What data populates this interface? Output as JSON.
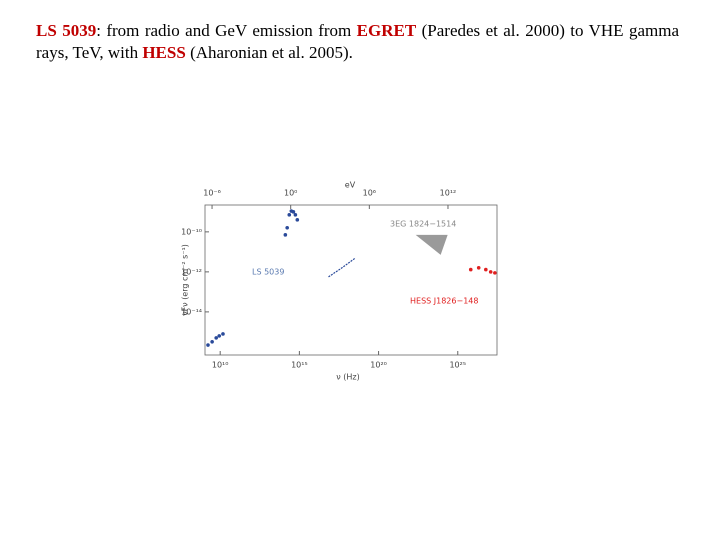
{
  "heading": {
    "parts": [
      "LS 5039",
      ": from radio and GeV emission from ",
      "EGRET",
      " (Paredes et al. 2000) to VHE gamma rays, TeV, with ",
      "HESS",
      " (Aharonian et al. 2005)."
    ]
  },
  "chart_data": {
    "type": "scatter",
    "x_label": "ν (Hz)",
    "y_label": "νFν (erg cm⁻² s⁻¹)",
    "x2_label": "eV",
    "xlog": true,
    "ylog": true,
    "xlim": [
      1100000000.0,
      3e+27
    ],
    "ylim": [
      7e-17,
      2.2e-09
    ],
    "x2lim": [
      2.9e-07,
      5500000000000000.0
    ],
    "xticks": [
      {
        "value": 10000000000.0,
        "label": "10¹⁰"
      },
      {
        "value": 1000000000000000.0,
        "label": "10¹⁵"
      },
      {
        "value": 1e+20,
        "label": "10²⁰"
      },
      {
        "value": 1e+25,
        "label": "10²⁵"
      }
    ],
    "x2ticks": [
      {
        "value": 1e-06,
        "label": "10⁻⁶"
      },
      {
        "value": 1,
        "label": "10⁰"
      },
      {
        "value": 1000000.0,
        "label": "10⁶"
      },
      {
        "value": 1000000000000.0,
        "label": "10¹²"
      }
    ],
    "yticks": [
      {
        "value": 1e-10,
        "label": "10⁻¹⁰"
      },
      {
        "value": 1e-12,
        "label": "10⁻¹²"
      },
      {
        "value": 1e-14,
        "label": "10⁻¹⁴"
      }
    ],
    "annotations": [
      "LS 5039",
      "3EG 1824−1514",
      "HESS J1826−148"
    ],
    "series": [
      {
        "mode": "points",
        "color": "#2a4a9a",
        "x": [
          1700000000.0,
          3100000000.0,
          5600000000.0,
          8700000000.0,
          15000000000.0
        ],
        "values": [
          2.2e-16,
          3.2e-16,
          5e-16,
          6.3e-16,
          7.9e-16
        ]
      },
      {
        "mode": "points",
        "color": "#2a4a9a",
        "x": [
          130000000000000.0,
          170000000000000.0,
          230000000000000.0,
          310000000000000.0,
          420000000000000.0,
          560000000000000.0,
          740000000000000.0
        ],
        "values": [
          7.1e-11,
          1.6e-10,
          7.1e-10,
          1.1e-09,
          1e-09,
          7.1e-10,
          4e-10
        ]
      },
      {
        "mode": "line",
        "color": "#2a4a9a",
        "x": [
          6.9e+16,
          4.9e+17,
          3.5e+18
        ],
        "values": [
          5.6e-13,
          1.6e-12,
          5e-12
        ]
      },
      {
        "mode": "area",
        "color": "#9a9a9a",
        "x": [
          2.2e+22,
          2.3e+24,
          8.3e+23
        ],
        "values": [
          7.1e-11,
          7.1e-11,
          7.1e-12
        ]
      },
      {
        "mode": "points",
        "color": "#e02020",
        "x": [
          6.6e+25,
          2.1e+26,
          5.9e+26,
          1.2e+27,
          2.2e+27
        ],
        "values": [
          1.3e-12,
          1.6e-12,
          1.3e-12,
          1e-12,
          8.9e-13
        ]
      }
    ]
  }
}
